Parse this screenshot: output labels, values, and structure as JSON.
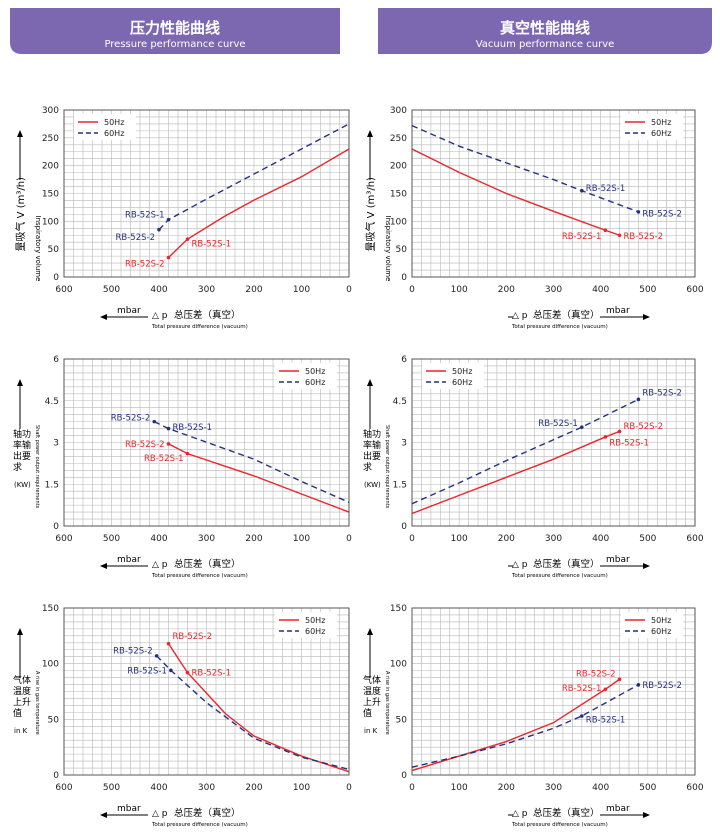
{
  "headers": {
    "left": {
      "title": "压力性能曲线",
      "subtitle": "Pressure performance curve"
    },
    "right": {
      "title": "真空性能曲线",
      "subtitle": "Vacuum performance curve"
    }
  },
  "colors": {
    "banner": "#7b68b0",
    "line50": "#e8262b",
    "line60": "#23317f",
    "grid": "#b8b8b8"
  },
  "legend": {
    "hz50": "50Hz",
    "hz60": "60Hz"
  },
  "axis_x": {
    "unit": "mbar",
    "symbol": "△ p",
    "pressure_label": "总压差（真空）",
    "vacuum_label": "总压差（真空）",
    "english": "Total pressure difference (vacuum)"
  },
  "ylabels": {
    "volume": {
      "cn": "量吸气 V (m³/h)",
      "en": "Inspiratory volume"
    },
    "power": {
      "cn": "轴功率输出要求",
      "en": "Shaft power output requirements",
      "unit": "(KW)"
    },
    "temp": {
      "cn": "气体温度上升值",
      "en": "A rise in gas temperature",
      "unit": "in K"
    }
  },
  "chart_data": [
    {
      "id": "pressure-volume",
      "type": "line",
      "xlim": [
        600,
        0
      ],
      "ylim": [
        0,
        300
      ],
      "xticks": [
        600,
        500,
        400,
        300,
        200,
        100,
        0
      ],
      "yticks": [
        0,
        50,
        100,
        150,
        200,
        250,
        300
      ],
      "grid": true,
      "legend": "top-left",
      "series": [
        {
          "name": "50Hz",
          "color": "#e8262b",
          "dash": false,
          "x": [
            380,
            340,
            260,
            200,
            100,
            0
          ],
          "y": [
            35,
            68,
            110,
            138,
            180,
            230
          ]
        },
        {
          "name": "60Hz",
          "color": "#23317f",
          "dash": true,
          "x": [
            400,
            380,
            300,
            200,
            100,
            0
          ],
          "y": [
            85,
            103,
            140,
            185,
            230,
            275
          ]
        }
      ],
      "points": [
        {
          "label": "RB-52S-1",
          "series": "60Hz",
          "x": 380,
          "y": 103,
          "side": "left",
          "ly": 112
        },
        {
          "label": "RB-52S-2",
          "series": "60Hz",
          "x": 400,
          "y": 85,
          "side": "left",
          "ly": 72
        },
        {
          "label": "RB-52S-1",
          "series": "50Hz",
          "x": 340,
          "y": 68,
          "side": "right",
          "ly": 60
        },
        {
          "label": "RB-52S-2",
          "series": "50Hz",
          "x": 380,
          "y": 35,
          "side": "left",
          "ly": 24
        }
      ]
    },
    {
      "id": "vacuum-volume",
      "type": "line",
      "xlim": [
        0,
        600
      ],
      "ylim": [
        0,
        300
      ],
      "xticks": [
        0,
        100,
        200,
        300,
        400,
        500,
        600
      ],
      "yticks": [
        0,
        50,
        100,
        150,
        200,
        250,
        300
      ],
      "grid": true,
      "legend": "top-right",
      "series": [
        {
          "name": "50Hz",
          "color": "#e8262b",
          "dash": false,
          "x": [
            0,
            100,
            200,
            300,
            410,
            440
          ],
          "y": [
            230,
            188,
            150,
            118,
            84,
            75
          ]
        },
        {
          "name": "60Hz",
          "color": "#23317f",
          "dash": true,
          "x": [
            0,
            100,
            200,
            300,
            360,
            480
          ],
          "y": [
            272,
            235,
            205,
            175,
            155,
            117
          ]
        }
      ],
      "points": [
        {
          "label": "RB-52S-1",
          "series": "60Hz",
          "x": 360,
          "y": 155,
          "side": "right",
          "ly": 160
        },
        {
          "label": "RB-52S-2",
          "series": "60Hz",
          "x": 480,
          "y": 117,
          "side": "right",
          "ly": 114
        },
        {
          "label": "RB-52S-1",
          "series": "50Hz",
          "x": 410,
          "y": 84,
          "side": "left",
          "ly": 74
        },
        {
          "label": "RB-52S-2",
          "series": "50Hz",
          "x": 440,
          "y": 75,
          "side": "right",
          "ly": 74
        }
      ]
    },
    {
      "id": "pressure-power",
      "type": "line",
      "xlim": [
        600,
        0
      ],
      "ylim": [
        0,
        6
      ],
      "xticks": [
        600,
        500,
        400,
        300,
        200,
        100,
        0
      ],
      "yticks": [
        0,
        1.5,
        3,
        4.5,
        6
      ],
      "ytick_labels": [
        "0",
        "1.5",
        "3",
        "4.5",
        "6"
      ],
      "grid": true,
      "legend": "top-right",
      "series": [
        {
          "name": "50Hz",
          "color": "#e8262b",
          "dash": false,
          "x": [
            380,
            340,
            200,
            100,
            0
          ],
          "y": [
            2.95,
            2.6,
            1.8,
            1.15,
            0.5
          ]
        },
        {
          "name": "60Hz",
          "color": "#23317f",
          "dash": true,
          "x": [
            410,
            380,
            200,
            100,
            0
          ],
          "y": [
            3.75,
            3.5,
            2.4,
            1.6,
            0.85
          ]
        }
      ],
      "points": [
        {
          "label": "RB-52S-2",
          "series": "60Hz",
          "x": 410,
          "y": 3.75,
          "side": "left",
          "ly": 3.9
        },
        {
          "label": "RB-52S-1",
          "series": "60Hz",
          "x": 380,
          "y": 3.5,
          "side": "right",
          "ly": 3.55
        },
        {
          "label": "RB-52S-2",
          "series": "50Hz",
          "x": 380,
          "y": 2.95,
          "side": "left",
          "ly": 2.95
        },
        {
          "label": "RB-52S-1",
          "series": "50Hz",
          "x": 340,
          "y": 2.6,
          "side": "left",
          "ly": 2.45
        }
      ]
    },
    {
      "id": "vacuum-power",
      "type": "line",
      "xlim": [
        0,
        600
      ],
      "ylim": [
        0,
        6
      ],
      "xticks": [
        0,
        100,
        200,
        300,
        400,
        500,
        600
      ],
      "yticks": [
        0,
        1.5,
        3,
        4.5,
        6
      ],
      "ytick_labels": [
        "0",
        "1.5",
        "3",
        "4.5",
        "6"
      ],
      "grid": true,
      "legend": "top-left",
      "series": [
        {
          "name": "50Hz",
          "color": "#e8262b",
          "dash": false,
          "x": [
            0,
            100,
            200,
            300,
            410,
            440
          ],
          "y": [
            0.45,
            1.1,
            1.75,
            2.4,
            3.2,
            3.4
          ]
        },
        {
          "name": "60Hz",
          "color": "#23317f",
          "dash": true,
          "x": [
            0,
            100,
            200,
            300,
            360,
            480
          ],
          "y": [
            0.8,
            1.55,
            2.35,
            3.1,
            3.55,
            4.55
          ]
        }
      ],
      "points": [
        {
          "label": "RB-52S-1",
          "series": "60Hz",
          "x": 360,
          "y": 3.55,
          "side": "left",
          "ly": 3.7
        },
        {
          "label": "RB-52S-2",
          "series": "60Hz",
          "x": 480,
          "y": 4.55,
          "side": "right",
          "ly": 4.8
        },
        {
          "label": "RB-52S-2",
          "series": "50Hz",
          "x": 440,
          "y": 3.4,
          "side": "right",
          "ly": 3.6
        },
        {
          "label": "RB-52S-1",
          "series": "50Hz",
          "x": 410,
          "y": 3.2,
          "side": "right",
          "ly": 3.0
        }
      ]
    },
    {
      "id": "pressure-temp",
      "type": "line",
      "xlim": [
        600,
        0
      ],
      "ylim": [
        0,
        150
      ],
      "xticks": [
        600,
        500,
        400,
        300,
        200,
        100,
        0
      ],
      "yticks": [
        0,
        50,
        100,
        150
      ],
      "grid": true,
      "legend": "top-right",
      "series": [
        {
          "name": "50Hz",
          "color": "#e8262b",
          "dash": false,
          "x": [
            380,
            340,
            260,
            200,
            100,
            0
          ],
          "y": [
            118,
            92,
            55,
            35,
            17,
            3
          ]
        },
        {
          "name": "60Hz",
          "color": "#23317f",
          "dash": true,
          "x": [
            405,
            375,
            300,
            200,
            100,
            0
          ],
          "y": [
            107,
            94,
            65,
            33,
            16,
            5
          ]
        }
      ],
      "points": [
        {
          "label": "RB-52S-2",
          "series": "50Hz",
          "x": 380,
          "y": 118,
          "side": "right",
          "ly": 125
        },
        {
          "label": "RB-52S-1",
          "series": "50Hz",
          "x": 340,
          "y": 92,
          "side": "right",
          "ly": 92
        },
        {
          "label": "RB-52S-2",
          "series": "60Hz",
          "x": 405,
          "y": 107,
          "side": "left",
          "ly": 112
        },
        {
          "label": "RB-52S-1",
          "series": "60Hz",
          "x": 375,
          "y": 94,
          "side": "left",
          "ly": 94
        }
      ]
    },
    {
      "id": "vacuum-temp",
      "type": "line",
      "xlim": [
        0,
        600
      ],
      "ylim": [
        0,
        150
      ],
      "xticks": [
        0,
        100,
        200,
        300,
        400,
        500,
        600
      ],
      "yticks": [
        0,
        50,
        100,
        150
      ],
      "grid": true,
      "legend": "top-right",
      "series": [
        {
          "name": "50Hz",
          "color": "#e8262b",
          "dash": false,
          "x": [
            0,
            100,
            200,
            300,
            410,
            440
          ],
          "y": [
            4,
            17,
            30,
            47,
            77,
            86
          ]
        },
        {
          "name": "60Hz",
          "color": "#23317f",
          "dash": true,
          "x": [
            0,
            100,
            200,
            300,
            360,
            480
          ],
          "y": [
            7,
            17,
            28,
            42,
            53,
            81
          ]
        }
      ],
      "points": [
        {
          "label": "RB-52S-2",
          "series": "50Hz",
          "x": 440,
          "y": 86,
          "side": "left",
          "ly": 91
        },
        {
          "label": "RB-52S-1",
          "series": "50Hz",
          "x": 410,
          "y": 77,
          "side": "left",
          "ly": 78
        },
        {
          "label": "RB-52S-2",
          "series": "60Hz",
          "x": 480,
          "y": 81,
          "side": "right",
          "ly": 81
        },
        {
          "label": "RB-52S-1",
          "series": "60Hz",
          "x": 360,
          "y": 53,
          "side": "right",
          "ly": 50
        }
      ]
    }
  ]
}
